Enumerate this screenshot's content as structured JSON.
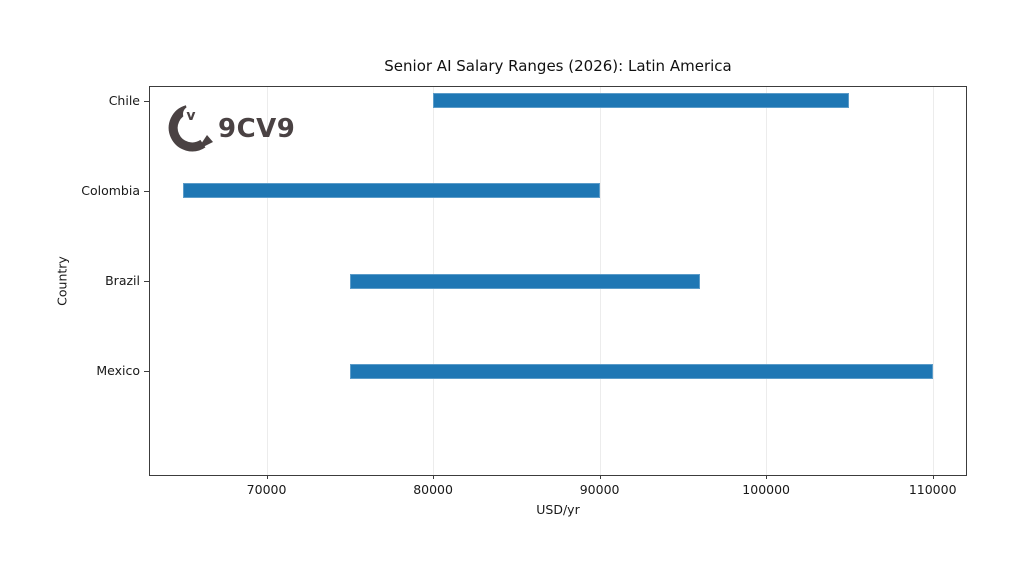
{
  "logo": {
    "text": "9CV9",
    "mark_letter": "v",
    "color": "#4a4243"
  },
  "chart_data": {
    "type": "bar",
    "orientation": "horizontal-range",
    "title": "Senior AI Salary Ranges (2026): Latin America",
    "xlabel": "USD/yr",
    "ylabel": "Country",
    "categories": [
      "Chile",
      "Colombia",
      "Brazil",
      "Mexico"
    ],
    "series": [
      {
        "name": "salary_range_usd_per_yr",
        "ranges": [
          [
            80000,
            105000
          ],
          [
            65000,
            90000
          ],
          [
            75000,
            96000
          ],
          [
            75000,
            110000
          ]
        ]
      }
    ],
    "xticks": [
      70000,
      80000,
      90000,
      100000,
      110000
    ],
    "xtick_labels": [
      "70000",
      "80000",
      "90000",
      "100000",
      "110000"
    ],
    "xlim": [
      63000,
      112000
    ],
    "grid": "vertical, light, on",
    "legend": "none",
    "bar_color": "#1f77b4",
    "bar_edge_color": "#5c9cc9",
    "gridline_color": "#ececec",
    "spine_color": "#3c3c3c",
    "text_color": "#191919"
  }
}
